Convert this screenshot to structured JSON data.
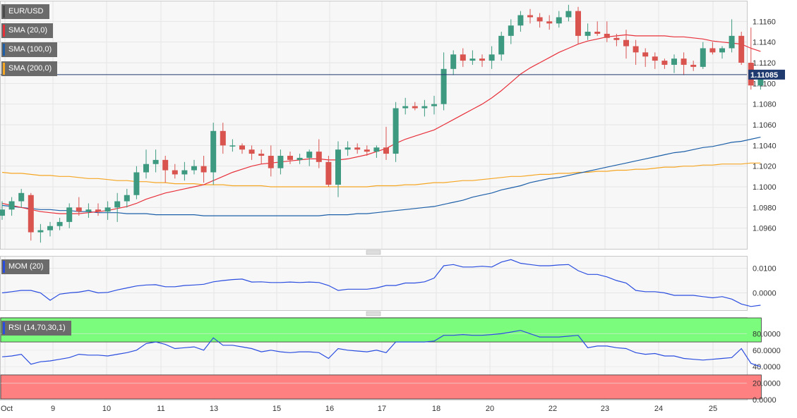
{
  "legend": {
    "symbol": "EUR/USD",
    "sma20": "SMA (20,0)",
    "sma100": "SMA (100,0)",
    "sma200": "SMA (200,0)",
    "mom": "MOM (20)",
    "rsi": "RSI (14,70,30,1)"
  },
  "colors": {
    "up": "#3d9a80",
    "down": "#d9534f",
    "sma20": "#e8303a",
    "sma100": "#1c5fa8",
    "sma200": "#f5a623",
    "indicator": "#2a4de0",
    "rsi_overbought": "#7cfc7c",
    "rsi_oversold": "#ff8080"
  },
  "chart_data": [
    {
      "type": "candlestick",
      "title": "EUR/USD",
      "ylim": [
        1.094,
        1.118
      ],
      "y_ticks": [
        "1.1160",
        "1.1140",
        "1.1120",
        "1.1100",
        "1.1080",
        "1.1060",
        "1.1040",
        "1.1020",
        "1.1000",
        "1.0980",
        "1.0960"
      ],
      "x_ticks": [
        "Oct",
        "9",
        "10",
        "11",
        "13",
        "15",
        "16",
        "17",
        "18",
        "20",
        "22",
        "23",
        "24",
        "25"
      ],
      "last_price": "1.11085",
      "ohlc": [
        [
          1.0972,
          1.0986,
          1.0968,
          1.0978
        ],
        [
          1.0978,
          1.099,
          1.0972,
          1.0986
        ],
        [
          1.0986,
          1.0998,
          1.098,
          1.0994
        ],
        [
          1.0992,
          1.0994,
          1.0948,
          1.0956
        ],
        [
          1.0956,
          1.0964,
          1.0946,
          1.0958
        ],
        [
          1.0958,
          1.0966,
          1.0952,
          1.0962
        ],
        [
          1.0962,
          1.097,
          1.0958,
          1.0966
        ],
        [
          1.0966,
          1.0984,
          1.096,
          1.098
        ],
        [
          1.098,
          1.099,
          1.0972,
          1.0976
        ],
        [
          1.0976,
          1.0984,
          1.097,
          1.0978
        ],
        [
          1.0978,
          1.0984,
          1.0972,
          1.0976
        ],
        [
          1.0976,
          1.0986,
          1.0968,
          1.098
        ],
        [
          1.098,
          1.0994,
          1.0966,
          1.0986
        ],
        [
          1.0986,
          1.0998,
          1.098,
          1.0992
        ],
        [
          1.0992,
          1.102,
          1.0988,
          1.1014
        ],
        [
          1.1014,
          1.1036,
          1.1008,
          1.1022
        ],
        [
          1.1022,
          1.1036,
          1.1014,
          1.1026
        ],
        [
          1.1026,
          1.103,
          1.1004,
          1.1016
        ],
        [
          1.1016,
          1.1022,
          1.1008,
          1.1012
        ],
        [
          1.1012,
          1.1024,
          1.1006,
          1.1016
        ],
        [
          1.1016,
          1.1026,
          1.1012,
          1.102
        ],
        [
          1.102,
          1.103,
          1.1004,
          1.1014
        ],
        [
          1.1014,
          1.1062,
          1.1002,
          1.1054
        ],
        [
          1.1054,
          1.1062,
          1.1032,
          1.104
        ],
        [
          1.104,
          1.1046,
          1.1034,
          1.104
        ],
        [
          1.104,
          1.1042,
          1.1032,
          1.1036
        ],
        [
          1.1036,
          1.104,
          1.1026,
          1.1032
        ],
        [
          1.1032,
          1.1036,
          1.1022,
          1.103
        ],
        [
          1.103,
          1.104,
          1.101,
          1.1018
        ],
        [
          1.1018,
          1.1036,
          1.1012,
          1.103
        ],
        [
          1.103,
          1.1034,
          1.1022,
          1.1026
        ],
        [
          1.1026,
          1.1032,
          1.1022,
          1.1028
        ],
        [
          1.1028,
          1.1036,
          1.102,
          1.1034
        ],
        [
          1.1034,
          1.1046,
          1.1018,
          1.1024
        ],
        [
          1.1024,
          1.103,
          1.1,
          1.1002
        ],
        [
          1.1002,
          1.1044,
          1.099,
          1.1036
        ],
        [
          1.1036,
          1.1044,
          1.103,
          1.1038
        ],
        [
          1.1038,
          1.1042,
          1.1032,
          1.1036
        ],
        [
          1.1036,
          1.104,
          1.103,
          1.1034
        ],
        [
          1.1034,
          1.104,
          1.1028,
          1.1038
        ],
        [
          1.1038,
          1.1058,
          1.1026,
          1.1032
        ],
        [
          1.1032,
          1.1082,
          1.1024,
          1.1076
        ],
        [
          1.1076,
          1.1086,
          1.107,
          1.1078
        ],
        [
          1.1078,
          1.1082,
          1.1074,
          1.1076
        ],
        [
          1.1076,
          1.1084,
          1.1068,
          1.1078
        ],
        [
          1.1078,
          1.1088,
          1.107,
          1.108
        ],
        [
          1.108,
          1.113,
          1.1074,
          1.1114
        ],
        [
          1.1114,
          1.1132,
          1.1108,
          1.1128
        ],
        [
          1.1128,
          1.1134,
          1.1116,
          1.1122
        ],
        [
          1.1122,
          1.1132,
          1.1118,
          1.1124
        ],
        [
          1.1124,
          1.1128,
          1.1116,
          1.1122
        ],
        [
          1.1122,
          1.1136,
          1.1114,
          1.1128
        ],
        [
          1.1128,
          1.115,
          1.1122,
          1.1146
        ],
        [
          1.1146,
          1.1162,
          1.1138,
          1.1156
        ],
        [
          1.1156,
          1.117,
          1.115,
          1.1166
        ],
        [
          1.1166,
          1.1172,
          1.1158,
          1.1164
        ],
        [
          1.1164,
          1.1168,
          1.1154,
          1.116
        ],
        [
          1.116,
          1.1166,
          1.1152,
          1.1158
        ],
        [
          1.1158,
          1.117,
          1.1154,
          1.1164
        ],
        [
          1.1164,
          1.1176,
          1.116,
          1.117
        ],
        [
          1.117,
          1.1174,
          1.1138,
          1.1146
        ],
        [
          1.1146,
          1.1158,
          1.1142,
          1.115
        ],
        [
          1.115,
          1.116,
          1.1146,
          1.1148
        ],
        [
          1.1148,
          1.116,
          1.114,
          1.1144
        ],
        [
          1.1144,
          1.1148,
          1.1136,
          1.1142
        ],
        [
          1.1142,
          1.1152,
          1.1124,
          1.1136
        ],
        [
          1.1136,
          1.1142,
          1.1118,
          1.113
        ],
        [
          1.113,
          1.1134,
          1.1116,
          1.1126
        ],
        [
          1.1126,
          1.113,
          1.1114,
          1.1122
        ],
        [
          1.1122,
          1.1124,
          1.1114,
          1.1118
        ],
        [
          1.1118,
          1.1128,
          1.111,
          1.1124
        ],
        [
          1.1124,
          1.113,
          1.1108,
          1.1118
        ],
        [
          1.1118,
          1.1122,
          1.1112,
          1.1116
        ],
        [
          1.1116,
          1.114,
          1.1114,
          1.1134
        ],
        [
          1.1134,
          1.114,
          1.1128,
          1.113
        ],
        [
          1.113,
          1.1136,
          1.1124,
          1.1134
        ],
        [
          1.1134,
          1.1162,
          1.113,
          1.1146
        ],
        [
          1.1146,
          1.115,
          1.1118,
          1.112
        ],
        [
          1.112,
          1.1154,
          1.1094,
          1.1098
        ],
        [
          1.1098,
          1.1112,
          1.1094,
          1.1108
        ]
      ],
      "series": [
        {
          "name": "SMA (20,0)",
          "values": [
            1.0984,
            1.0982,
            1.098,
            1.0978,
            1.0976,
            1.0975,
            1.0974,
            1.0974,
            1.0974,
            1.0975,
            1.0976,
            1.0977,
            1.0979,
            1.0981,
            1.0984,
            1.0988,
            1.0991,
            1.0994,
            1.0996,
            1.0998,
            1.1,
            1.1002,
            1.1006,
            1.101,
            1.1014,
            1.1017,
            1.102,
            1.1022,
            1.1023,
            1.1024,
            1.1025,
            1.1026,
            1.1027,
            1.1027,
            1.1026,
            1.1026,
            1.1027,
            1.1029,
            1.1031,
            1.1034,
            1.1037,
            1.1042,
            1.1046,
            1.1049,
            1.1052,
            1.1055,
            1.106,
            1.1065,
            1.107,
            1.1075,
            1.108,
            1.1086,
            1.1093,
            1.1101,
            1.1109,
            1.1115,
            1.112,
            1.1125,
            1.113,
            1.1134,
            1.1138,
            1.1141,
            1.1143,
            1.1145,
            1.1146,
            1.1147,
            1.1146,
            1.1146,
            1.1146,
            1.1146,
            1.1145,
            1.1145,
            1.1144,
            1.1143,
            1.1141,
            1.114,
            1.1139,
            1.1138,
            1.1134,
            1.1131
          ]
        },
        {
          "name": "SMA (100,0)",
          "values": [
            1.0982,
            1.0981,
            1.098,
            1.0979,
            1.0978,
            1.0978,
            1.0977,
            1.0977,
            1.0976,
            1.0976,
            1.0975,
            1.0975,
            1.0975,
            1.0974,
            1.0974,
            1.0974,
            1.0973,
            1.0973,
            1.0973,
            1.0973,
            1.0973,
            1.0972,
            1.0972,
            1.0972,
            1.0972,
            1.0972,
            1.0972,
            1.0972,
            1.0972,
            1.0972,
            1.0972,
            1.0972,
            1.0972,
            1.0972,
            1.0973,
            1.0973,
            1.0973,
            1.0974,
            1.0974,
            1.0975,
            1.0976,
            1.0977,
            1.0978,
            1.0979,
            1.098,
            1.0981,
            1.0983,
            1.0985,
            1.0987,
            1.099,
            1.0992,
            1.0994,
            1.0997,
            1.0999,
            1.1001,
            1.1004,
            1.1006,
            1.1008,
            1.1009,
            1.1011,
            1.1013,
            1.1015,
            1.1017,
            1.1019,
            1.1021,
            1.1023,
            1.1025,
            1.1027,
            1.1029,
            1.1031,
            1.1033,
            1.1034,
            1.1036,
            1.1038,
            1.1039,
            1.1041,
            1.1043,
            1.1044,
            1.1046,
            1.1048
          ]
        },
        {
          "name": "SMA (200,0)",
          "values": [
            1.1014,
            1.1013,
            1.1013,
            1.1012,
            1.1011,
            1.1011,
            1.101,
            1.101,
            1.1009,
            1.1008,
            1.1008,
            1.1007,
            1.1006,
            1.1006,
            1.1005,
            1.1005,
            1.1004,
            1.1004,
            1.1003,
            1.1003,
            1.1003,
            1.1002,
            1.1002,
            1.1002,
            1.1001,
            1.1001,
            1.1001,
            1.1001,
            1.1,
            1.1,
            1.1,
            1.1,
            1.1,
            1.1,
            1.1,
            1.1,
            1.1,
            1.1,
            1.1,
            1.1001,
            1.1001,
            1.1001,
            1.1002,
            1.1002,
            1.1003,
            1.1004,
            1.1004,
            1.1005,
            1.1006,
            1.1006,
            1.1007,
            1.1008,
            1.1009,
            1.101,
            1.101,
            1.1011,
            1.1012,
            1.1012,
            1.1013,
            1.1013,
            1.1014,
            1.1014,
            1.1015,
            1.1015,
            1.1016,
            1.1016,
            1.1017,
            1.1017,
            1.1018,
            1.1019,
            1.1019,
            1.102,
            1.102,
            1.1021,
            1.1021,
            1.1022,
            1.1022,
            1.1022,
            1.1023,
            1.1023
          ]
        }
      ]
    },
    {
      "type": "line",
      "title": "MOM (20)",
      "ylim": [
        -0.007,
        0.015
      ],
      "y_ticks": [
        "0.0100",
        "0.0000"
      ],
      "series": [
        {
          "name": "MOM (20)",
          "values": [
            0.0,
            0.0005,
            0.001,
            0.001,
            0.0,
            -0.003,
            -0.0005,
            0.0,
            0.0003,
            0.001,
            0.0,
            0.0002,
            0.0012,
            0.002,
            0.0028,
            0.0032,
            0.0033,
            0.0025,
            0.0025,
            0.003,
            0.0032,
            0.0035,
            0.0045,
            0.005,
            0.0054,
            0.0056,
            0.0044,
            0.0045,
            0.0042,
            0.0042,
            0.0044,
            0.0042,
            0.0044,
            0.0042,
            0.003,
            0.001,
            0.0015,
            0.0015,
            0.0015,
            0.002,
            0.003,
            0.003,
            0.004,
            0.004,
            0.0045,
            0.006,
            0.011,
            0.0115,
            0.0105,
            0.0105,
            0.0108,
            0.0105,
            0.0125,
            0.0135,
            0.012,
            0.0115,
            0.011,
            0.011,
            0.0113,
            0.0115,
            0.009,
            0.0075,
            0.0075,
            0.0065,
            0.005,
            0.004,
            0.001,
            0.0005,
            0.0005,
            0.0,
            -0.001,
            -0.001,
            -0.001,
            -0.0015,
            -0.002,
            -0.0015,
            -0.0025,
            -0.0045,
            -0.0055,
            -0.005
          ]
        }
      ]
    },
    {
      "type": "line",
      "title": "RSI (14,70,30,1)",
      "ylim": [
        0,
        100
      ],
      "y_ticks": [
        "80.0000",
        "60.0000",
        "40.0000",
        "20.0000",
        "0.0000"
      ],
      "overbought": 70,
      "oversold": 30,
      "series": [
        {
          "name": "RSI (14,70,30,1)",
          "values": [
            52,
            53,
            55,
            43,
            46,
            47,
            49,
            51,
            55,
            54,
            54,
            53,
            55,
            57,
            60,
            68,
            70,
            67,
            62,
            63,
            64,
            60,
            75,
            66,
            66,
            64,
            62,
            58,
            60,
            58,
            57,
            58,
            58,
            57,
            50,
            62,
            60,
            59,
            58,
            60,
            57,
            70,
            70,
            70,
            70,
            71,
            78,
            78,
            79,
            78,
            78,
            79,
            80,
            82,
            84,
            80,
            76,
            76,
            76,
            77,
            78,
            63,
            65,
            65,
            63,
            62,
            57,
            55,
            56,
            53,
            53,
            50,
            49,
            48,
            49,
            50,
            51,
            62,
            44,
            40
          ]
        }
      ]
    }
  ]
}
